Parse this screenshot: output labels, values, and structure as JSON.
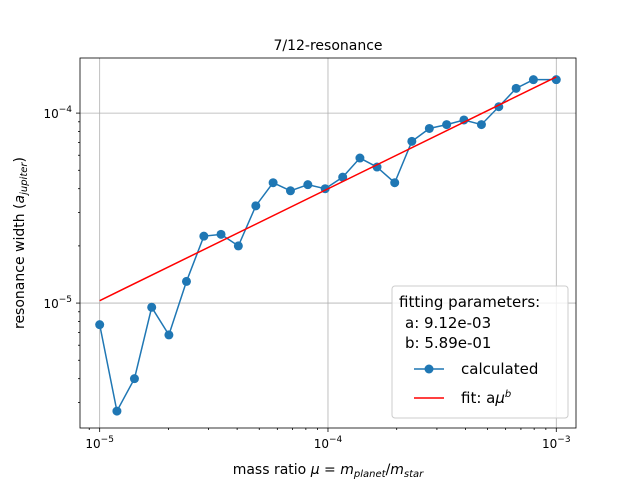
{
  "chart_data": {
    "type": "line",
    "title": "7/12-resonance",
    "xlabel": "mass ratio μ = m_planet / m_star",
    "ylabel": "resonance width (a_jupiter)",
    "xscale": "log",
    "yscale": "log",
    "xlim": [
      8.2e-06,
      0.00122
    ],
    "ylim": [
      2.2e-06,
      0.000195
    ],
    "grid": true,
    "legend_position": "lower-right",
    "xticks": [
      {
        "value": 1e-05,
        "base": "10",
        "exp": "−5"
      },
      {
        "value": 0.0001,
        "base": "10",
        "exp": "−4"
      },
      {
        "value": 0.001,
        "base": "10",
        "exp": "−3"
      }
    ],
    "yticks": [
      {
        "value": 1e-05,
        "base": "10",
        "exp": "−5"
      },
      {
        "value": 0.0001,
        "base": "10",
        "exp": "−4"
      }
    ],
    "fit_parameters": {
      "heading": "fitting parameters:",
      "a_line": "a: 9.12e-03",
      "b_line": "b: 5.89e-01",
      "a": 0.00912,
      "b": 0.589
    },
    "series": [
      {
        "name": "calculated",
        "style": "line+markers",
        "color": "#1f77b4",
        "x": [
          1e-05,
          1.19e-05,
          1.42e-05,
          1.69e-05,
          2.01e-05,
          2.4e-05,
          2.86e-05,
          3.4e-05,
          4.05e-05,
          4.83e-05,
          5.75e-05,
          6.85e-05,
          8.16e-05,
          9.72e-05,
          0.000116,
          0.000138,
          0.000164,
          0.000196,
          0.000233,
          0.000278,
          0.000331,
          0.000394,
          0.00047,
          0.00056,
          0.000667,
          0.000794,
          0.001
        ],
        "y": [
          7.7e-06,
          2.7e-06,
          4e-06,
          9.5e-06,
          6.8e-06,
          1.3e-05,
          2.25e-05,
          2.3e-05,
          2e-05,
          3.25e-05,
          4.3e-05,
          3.9e-05,
          4.2e-05,
          4e-05,
          4.6e-05,
          5.8e-05,
          5.2e-05,
          4.3e-05,
          7.1e-05,
          8.3e-05,
          8.7e-05,
          9.2e-05,
          8.7e-05,
          0.000108,
          0.000135,
          0.00015,
          0.00015
        ]
      },
      {
        "name": "fit: aμ^b",
        "style": "line",
        "color": "#ff0000",
        "x": [
          1e-05,
          0.001
        ],
        "y": [
          1.03e-05,
          0.000155
        ]
      }
    ]
  },
  "labels": {
    "title": "7/12-resonance",
    "xlabel_prefix": "mass ratio ",
    "xlabel_mu": "μ",
    "xlabel_eq": " = ",
    "xlabel_m1": "m",
    "xlabel_sub1": "planet",
    "xlabel_slash": "/",
    "xlabel_m2": "m",
    "xlabel_sub2": "star",
    "ylabel_prefix": "resonance width (",
    "ylabel_a": "a",
    "ylabel_sub": "jupiter",
    "ylabel_suffix": ")",
    "legend_calc": "calculated",
    "legend_fit_prefix": "fit: a",
    "legend_fit_mu": "μ",
    "legend_fit_exp": "b"
  }
}
